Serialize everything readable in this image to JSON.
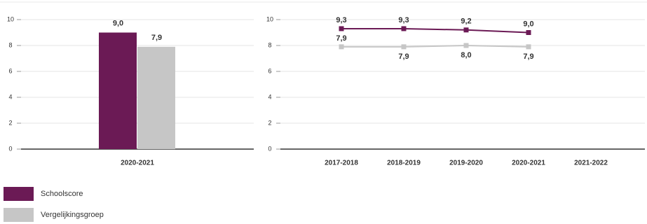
{
  "chart_data": [
    {
      "type": "bar",
      "categories": [
        "2020-2021"
      ],
      "series": [
        {
          "name": "Schoolscore",
          "color": "#6b1a55",
          "values": [
            9.0
          ],
          "value_labels": [
            "9,0"
          ]
        },
        {
          "name": "Vergelijkingsgroep",
          "color": "#c6c6c6",
          "values": [
            7.9
          ],
          "value_labels": [
            "7,9"
          ]
        }
      ],
      "ylim": [
        0,
        10
      ],
      "yticks": [
        0,
        2,
        4,
        6,
        8,
        10
      ],
      "grid": true
    },
    {
      "type": "line",
      "categories": [
        "2017-2018",
        "2018-2019",
        "2019-2020",
        "2020-2021",
        "2021-2022"
      ],
      "series": [
        {
          "color": "#6b1a55",
          "values": [
            9.3,
            9.3,
            9.2,
            9.0,
            null
          ],
          "value_labels": [
            "9,3",
            "9,3",
            "9,2",
            "9,0",
            null
          ]
        },
        {
          "color": "#c6c6c6",
          "values": [
            7.9,
            7.9,
            8.0,
            7.9,
            null
          ],
          "value_labels": [
            "7,9",
            "7,9",
            "8,0",
            "7,9",
            null
          ]
        }
      ],
      "ylim": [
        0,
        10
      ],
      "yticks": [
        0,
        2,
        4,
        6,
        8,
        10
      ],
      "grid": true
    }
  ]
}
